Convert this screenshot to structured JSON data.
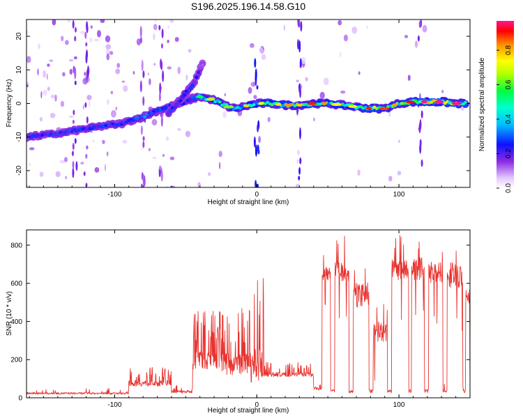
{
  "title": "S196.2025.196.14.58.G10",
  "chart_data": [
    {
      "type": "heatmap",
      "xlabel": "Height of straight line (km)",
      "ylabel": "Frequency (Hz)",
      "xlim": [
        -162,
        150
      ],
      "ylim": [
        -25,
        25
      ],
      "xticks": [
        -100,
        0,
        100
      ],
      "yticks": [
        -20,
        -10,
        0,
        10,
        20
      ],
      "colorbar": {
        "label": "Normalized spectral amplitude",
        "range": [
          0,
          0.97
        ],
        "ticks": [
          0.0,
          0.2,
          0.4,
          0.6,
          0.8
        ],
        "tick_labels": [
          "0.0",
          "0.2",
          "0.4",
          "0.6",
          "0.8"
        ]
      },
      "ridge": {
        "x": [
          -162,
          -140,
          -120,
          -105,
          -95,
          -88,
          -80,
          -72,
          -65,
          -58,
          -50,
          -45,
          -40,
          -35,
          -30,
          -25,
          -20,
          -15,
          -10,
          -5,
          0,
          10,
          20,
          30,
          40,
          50,
          60,
          70,
          80,
          90,
          100,
          110,
          120,
          130,
          140,
          148
        ],
        "y": [
          -10,
          -9,
          -7.5,
          -6.5,
          -6,
          -5,
          -4,
          -2.5,
          -1.5,
          -0.5,
          0.5,
          1.5,
          2,
          1.5,
          1,
          0,
          -1,
          -1.5,
          -1,
          -0.5,
          0,
          0,
          -0.5,
          -0.5,
          0,
          0,
          -0.5,
          -1,
          -1.5,
          -1.5,
          0,
          0.5,
          0.5,
          0.5,
          0,
          0
        ],
        "amplitude": [
          0.3,
          0.3,
          0.3,
          0.3,
          0.3,
          0.3,
          0.35,
          0.35,
          0.35,
          0.35,
          0.3,
          0.35,
          0.4,
          0.45,
          0.5,
          0.55,
          0.5,
          0.45,
          0.5,
          0.55,
          0.55,
          0.6,
          0.65,
          0.6,
          0.65,
          0.55,
          0.6,
          0.55,
          0.75,
          0.6,
          0.65,
          0.7,
          0.85,
          0.8,
          0.75,
          0.7
        ]
      },
      "branch": {
        "x": [
          -62,
          -58,
          -54,
          -50,
          -46,
          -42,
          -38
        ],
        "y": [
          -3,
          -1,
          1,
          3,
          5,
          8,
          12
        ],
        "amplitude": [
          0.3,
          0.35,
          0.3,
          0.35,
          0.3,
          0.25,
          0.2
        ]
      }
    },
    {
      "type": "line",
      "xlabel": "Height of straight line (km)",
      "ylabel": "SNR (10 * v/v)",
      "xlim": [
        -162,
        150
      ],
      "ylim": [
        0,
        880
      ],
      "xticks": [
        -100,
        0,
        100
      ],
      "yticks": [
        0,
        200,
        400,
        600,
        800
      ],
      "color": "#e8332f",
      "segments": [
        {
          "from": -162,
          "to": -90,
          "base": 18,
          "amp": 30,
          "spikes": 8
        },
        {
          "from": -90,
          "to": -60,
          "base": 60,
          "amp": 90,
          "spikes": 12
        },
        {
          "from": -60,
          "to": -45,
          "base": 25,
          "amp": 40,
          "spikes": 4
        },
        {
          "from": -45,
          "to": -25,
          "base": 150,
          "amp": 280,
          "spikes": 14
        },
        {
          "from": -25,
          "to": -5,
          "base": 120,
          "amp": 320,
          "spikes": 12
        },
        {
          "from": -5,
          "to": 5,
          "base": 80,
          "amp": 500,
          "spikes": 6
        },
        {
          "from": 5,
          "to": 40,
          "base": 110,
          "amp": 70,
          "spikes": 10
        },
        {
          "from": 40,
          "to": 46,
          "base": 40,
          "amp": 50,
          "spikes": 2
        }
      ],
      "plateaus": [
        {
          "from": 46,
          "to": 52,
          "level": 640,
          "noise": 120
        },
        {
          "from": 55,
          "to": 65,
          "level": 650,
          "noise": 180
        },
        {
          "from": 68,
          "to": 79,
          "level": 520,
          "noise": 220
        },
        {
          "from": 82,
          "to": 92,
          "level": 330,
          "noise": 180
        },
        {
          "from": 95,
          "to": 107,
          "level": 650,
          "noise": 190
        },
        {
          "from": 109,
          "to": 118,
          "level": 660,
          "noise": 200
        },
        {
          "from": 121,
          "to": 131,
          "level": 640,
          "noise": 200
        },
        {
          "from": 134,
          "to": 145,
          "level": 620,
          "noise": 230
        },
        {
          "from": 147,
          "to": 150,
          "level": 520,
          "noise": 120
        }
      ],
      "gap_level": 25
    }
  ]
}
